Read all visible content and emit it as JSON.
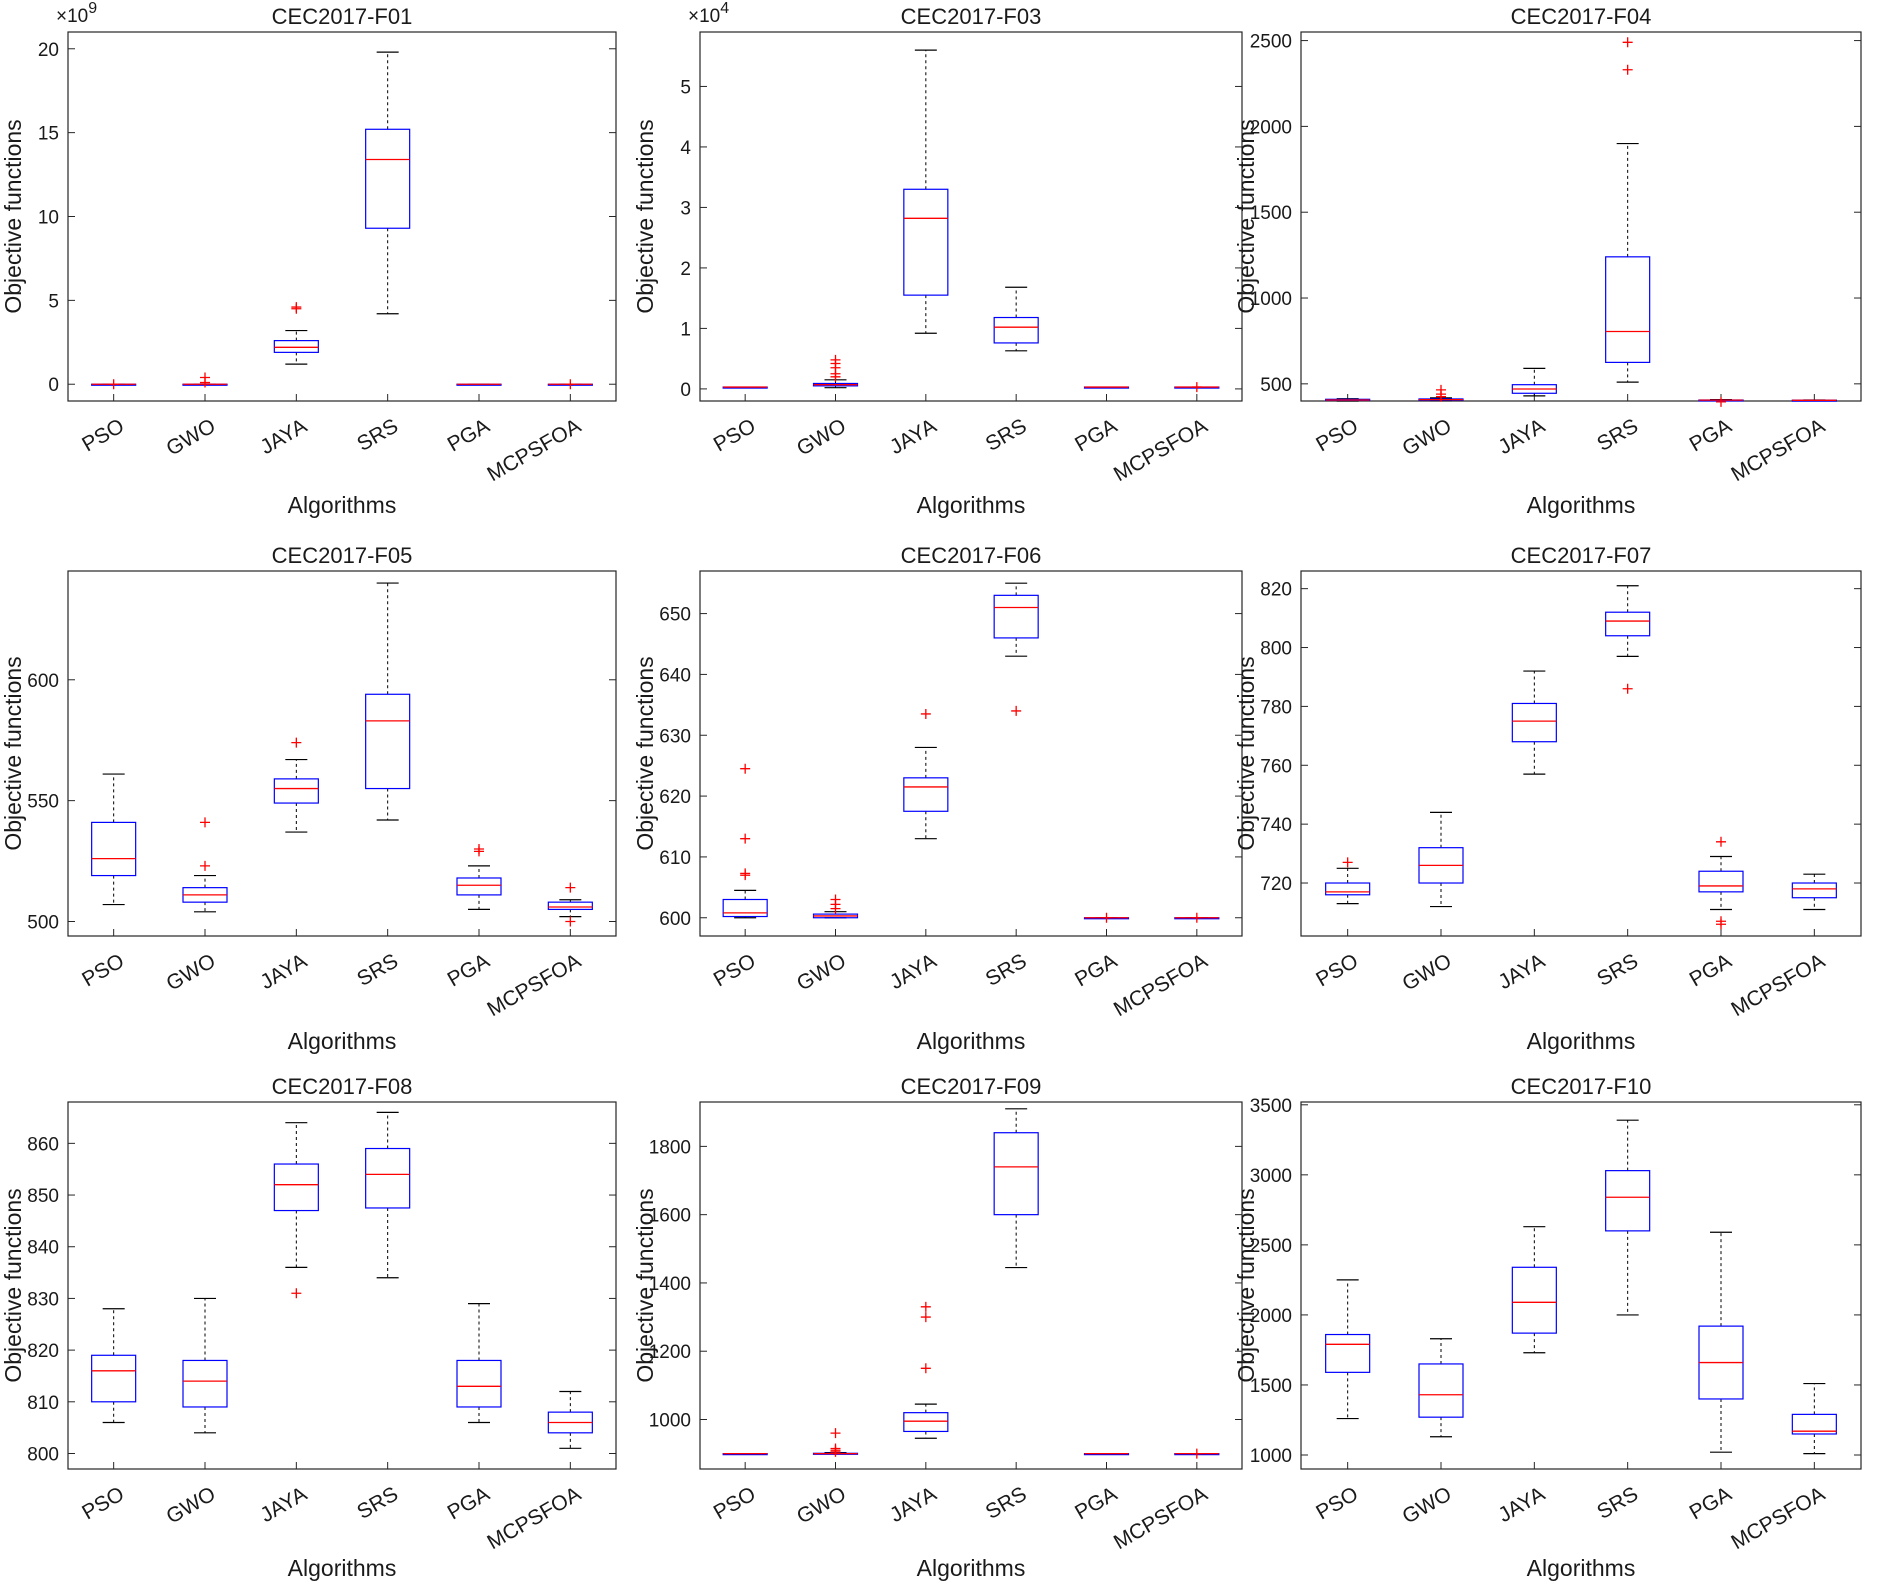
{
  "figure": {
    "colors": {
      "box": "#0000ff",
      "median": "#ff0000",
      "outlier": "#ff0000",
      "whisker": "#000000",
      "axis": "#262626"
    }
  },
  "chart_data": [
    {
      "type": "box",
      "title": "CEC2017-F01",
      "xlabel": "Algorithms",
      "ylabel": "Objective functions",
      "exponent": "9",
      "ylim": [
        -1,
        21
      ],
      "yticks": [
        0,
        5,
        10,
        15,
        20
      ],
      "ytick_labels": [
        "0",
        "5",
        "10",
        "15",
        "20"
      ],
      "categories": [
        "PSO",
        "GWO",
        "JAYA",
        "SRS",
        "PGA",
        "MCPSFOA"
      ],
      "boxes": [
        {
          "min": 0,
          "q1": 0,
          "median": 0,
          "q3": 0,
          "max": 0,
          "outliers": [
            0
          ]
        },
        {
          "min": 0,
          "q1": 0,
          "median": 0,
          "q3": 0,
          "max": 0,
          "outliers": [
            0.1,
            0.4
          ]
        },
        {
          "min": 1.2,
          "q1": 1.9,
          "median": 2.2,
          "q3": 2.6,
          "max": 3.2,
          "outliers": [
            4.5,
            4.6
          ]
        },
        {
          "min": 4.2,
          "q1": 9.3,
          "median": 13.4,
          "q3": 15.2,
          "max": 19.8,
          "outliers": []
        },
        {
          "min": 0,
          "q1": 0,
          "median": 0,
          "q3": 0,
          "max": 0,
          "outliers": []
        },
        {
          "min": 0,
          "q1": 0,
          "median": 0,
          "q3": 0,
          "max": 0,
          "outliers": [
            0
          ]
        }
      ]
    },
    {
      "type": "box",
      "title": "CEC2017-F03",
      "xlabel": "Algorithms",
      "ylabel": "Objective functions",
      "exponent": "4",
      "ylim": [
        -0.2,
        5.9
      ],
      "yticks": [
        0,
        1,
        2,
        3,
        4,
        5
      ],
      "ytick_labels": [
        "0",
        "1",
        "2",
        "3",
        "4",
        "5"
      ],
      "categories": [
        "PSO",
        "GWO",
        "JAYA",
        "SRS",
        "PGA",
        "MCPSFOA"
      ],
      "boxes": [
        {
          "min": 0.03,
          "q1": 0.03,
          "median": 0.03,
          "q3": 0.03,
          "max": 0.03,
          "outliers": []
        },
        {
          "min": 0.02,
          "q1": 0.05,
          "median": 0.07,
          "q3": 0.09,
          "max": 0.15,
          "outliers": [
            0.2,
            0.25,
            0.35,
            0.42,
            0.48
          ]
        },
        {
          "min": 0.92,
          "q1": 1.55,
          "median": 2.82,
          "q3": 3.3,
          "max": 5.6,
          "outliers": []
        },
        {
          "min": 0.63,
          "q1": 0.76,
          "median": 1.02,
          "q3": 1.18,
          "max": 1.68,
          "outliers": []
        },
        {
          "min": 0.03,
          "q1": 0.03,
          "median": 0.03,
          "q3": 0.03,
          "max": 0.03,
          "outliers": []
        },
        {
          "min": 0.03,
          "q1": 0.03,
          "median": 0.03,
          "q3": 0.03,
          "max": 0.03,
          "outliers": [
            0.03
          ]
        }
      ]
    },
    {
      "type": "box",
      "title": "CEC2017-F04",
      "xlabel": "Algorithms",
      "ylabel": "Objective functions",
      "exponent": "",
      "ylim": [
        400,
        2550
      ],
      "yticks": [
        500,
        1000,
        1500,
        2000,
        2500
      ],
      "ytick_labels": [
        "500",
        "1000",
        "1500",
        "2000",
        "2500"
      ],
      "categories": [
        "PSO",
        "GWO",
        "JAYA",
        "SRS",
        "PGA",
        "MCPSFOA"
      ],
      "boxes": [
        {
          "min": 400,
          "q1": 404,
          "median": 406,
          "q3": 410,
          "max": 413,
          "outliers": []
        },
        {
          "min": 402,
          "q1": 405,
          "median": 408,
          "q3": 412,
          "max": 418,
          "outliers": [
            425,
            440,
            465
          ]
        },
        {
          "min": 430,
          "q1": 445,
          "median": 470,
          "q3": 495,
          "max": 590,
          "outliers": []
        },
        {
          "min": 510,
          "q1": 625,
          "median": 805,
          "q3": 1240,
          "max": 1900,
          "outliers": [
            2330,
            2490
          ]
        },
        {
          "min": 402,
          "q1": 404,
          "median": 405,
          "q3": 406,
          "max": 408,
          "outliers": [
            395
          ]
        },
        {
          "min": 402,
          "q1": 403,
          "median": 404,
          "q3": 405,
          "max": 406,
          "outliers": []
        }
      ]
    },
    {
      "type": "box",
      "title": "CEC2017-F05",
      "xlabel": "Algorithms",
      "ylabel": "Objective functions",
      "exponent": "",
      "ylim": [
        494,
        645
      ],
      "yticks": [
        500,
        550,
        600
      ],
      "ytick_labels": [
        "500",
        "550",
        "600"
      ],
      "categories": [
        "PSO",
        "GWO",
        "JAYA",
        "SRS",
        "PGA",
        "MCPSFOA"
      ],
      "boxes": [
        {
          "min": 507,
          "q1": 519,
          "median": 526,
          "q3": 541,
          "max": 561,
          "outliers": []
        },
        {
          "min": 504,
          "q1": 508,
          "median": 511,
          "q3": 514,
          "max": 519,
          "outliers": [
            523,
            541
          ]
        },
        {
          "min": 537,
          "q1": 549,
          "median": 555,
          "q3": 559,
          "max": 567,
          "outliers": [
            574
          ]
        },
        {
          "min": 542,
          "q1": 555,
          "median": 583,
          "q3": 594,
          "max": 640,
          "outliers": []
        },
        {
          "min": 505,
          "q1": 511,
          "median": 515,
          "q3": 518,
          "max": 523,
          "outliers": [
            529,
            530
          ]
        },
        {
          "min": 502,
          "q1": 505,
          "median": 506,
          "q3": 508,
          "max": 509,
          "outliers": [
            500,
            514
          ]
        }
      ]
    },
    {
      "type": "box",
      "title": "CEC2017-F06",
      "xlabel": "Algorithms",
      "ylabel": "Objective functions",
      "exponent": "",
      "ylim": [
        597,
        657
      ],
      "yticks": [
        600,
        610,
        620,
        630,
        640,
        650
      ],
      "ytick_labels": [
        "600",
        "610",
        "620",
        "630",
        "640",
        "650"
      ],
      "categories": [
        "PSO",
        "GWO",
        "JAYA",
        "SRS",
        "PGA",
        "MCPSFOA"
      ],
      "boxes": [
        {
          "min": 600,
          "q1": 600.2,
          "median": 600.8,
          "q3": 603,
          "max": 604.5,
          "outliers": [
            607,
            607.3,
            613,
            624.5
          ]
        },
        {
          "min": 600,
          "q1": 600,
          "median": 600.3,
          "q3": 600.6,
          "max": 601,
          "outliers": [
            601.5,
            602.2,
            603
          ]
        },
        {
          "min": 613,
          "q1": 617.5,
          "median": 621.5,
          "q3": 623,
          "max": 628,
          "outliers": [
            633.5
          ]
        },
        {
          "min": 643,
          "q1": 646,
          "median": 651,
          "q3": 653,
          "max": 655,
          "outliers": [
            634
          ]
        },
        {
          "min": 600,
          "q1": 600,
          "median": 600,
          "q3": 600,
          "max": 600,
          "outliers": [
            600
          ]
        },
        {
          "min": 600,
          "q1": 600,
          "median": 600,
          "q3": 600,
          "max": 600,
          "outliers": [
            600
          ]
        }
      ]
    },
    {
      "type": "box",
      "title": "CEC2017-F07",
      "xlabel": "Algorithms",
      "ylabel": "Objective functions",
      "exponent": "",
      "ylim": [
        702,
        826
      ],
      "yticks": [
        720,
        740,
        760,
        780,
        800,
        820
      ],
      "ytick_labels": [
        "720",
        "740",
        "760",
        "780",
        "800",
        "820"
      ],
      "categories": [
        "PSO",
        "GWO",
        "JAYA",
        "SRS",
        "PGA",
        "MCPSFOA"
      ],
      "boxes": [
        {
          "min": 713,
          "q1": 716,
          "median": 717,
          "q3": 720,
          "max": 725,
          "outliers": [
            727
          ]
        },
        {
          "min": 712,
          "q1": 720,
          "median": 726,
          "q3": 732,
          "max": 744,
          "outliers": []
        },
        {
          "min": 757,
          "q1": 768,
          "median": 775,
          "q3": 781,
          "max": 792,
          "outliers": []
        },
        {
          "min": 797,
          "q1": 804,
          "median": 809,
          "q3": 812,
          "max": 821,
          "outliers": [
            786
          ]
        },
        {
          "min": 711,
          "q1": 717,
          "median": 719,
          "q3": 724,
          "max": 729,
          "outliers": [
            706,
            707,
            734
          ]
        },
        {
          "min": 711,
          "q1": 715,
          "median": 718,
          "q3": 720,
          "max": 723,
          "outliers": []
        }
      ]
    },
    {
      "type": "box",
      "title": "CEC2017-F08",
      "xlabel": "Algorithms",
      "ylabel": "Objective functions",
      "exponent": "",
      "ylim": [
        797,
        868
      ],
      "yticks": [
        800,
        810,
        820,
        830,
        840,
        850,
        860
      ],
      "ytick_labels": [
        "800",
        "810",
        "820",
        "830",
        "840",
        "850",
        "860"
      ],
      "categories": [
        "PSO",
        "GWO",
        "JAYA",
        "SRS",
        "PGA",
        "MCPSFOA"
      ],
      "boxes": [
        {
          "min": 806,
          "q1": 810,
          "median": 816,
          "q3": 819,
          "max": 828,
          "outliers": []
        },
        {
          "min": 804,
          "q1": 809,
          "median": 814,
          "q3": 818,
          "max": 830,
          "outliers": []
        },
        {
          "min": 836,
          "q1": 847,
          "median": 852,
          "q3": 856,
          "max": 864,
          "outliers": [
            831
          ]
        },
        {
          "min": 834,
          "q1": 847.5,
          "median": 854,
          "q3": 859,
          "max": 866,
          "outliers": []
        },
        {
          "min": 806,
          "q1": 809,
          "median": 813,
          "q3": 818,
          "max": 829,
          "outliers": []
        },
        {
          "min": 801,
          "q1": 804,
          "median": 806,
          "q3": 808,
          "max": 812,
          "outliers": []
        }
      ]
    },
    {
      "type": "box",
      "title": "CEC2017-F09",
      "xlabel": "Algorithms",
      "ylabel": "Objective functions",
      "exponent": "",
      "ylim": [
        855,
        1930
      ],
      "yticks": [
        1000,
        1200,
        1400,
        1600,
        1800
      ],
      "ytick_labels": [
        "1000",
        "1200",
        "1400",
        "1600",
        "1800"
      ],
      "categories": [
        "PSO",
        "GWO",
        "JAYA",
        "SRS",
        "PGA",
        "MCPSFOA"
      ],
      "boxes": [
        {
          "min": 900,
          "q1": 900,
          "median": 900,
          "q3": 900,
          "max": 900,
          "outliers": []
        },
        {
          "min": 900,
          "q1": 900,
          "median": 900,
          "q3": 901,
          "max": 903,
          "outliers": [
            905,
            910,
            915,
            960
          ]
        },
        {
          "min": 945,
          "q1": 965,
          "median": 995,
          "q3": 1020,
          "max": 1045,
          "outliers": [
            1150,
            1300,
            1330
          ]
        },
        {
          "min": 1445,
          "q1": 1600,
          "median": 1740,
          "q3": 1840,
          "max": 1910,
          "outliers": []
        },
        {
          "min": 900,
          "q1": 900,
          "median": 900,
          "q3": 900,
          "max": 900,
          "outliers": []
        },
        {
          "min": 900,
          "q1": 900,
          "median": 900,
          "q3": 900,
          "max": 900,
          "outliers": [
            900
          ]
        }
      ]
    },
    {
      "type": "box",
      "title": "CEC2017-F10",
      "xlabel": "Algorithms",
      "ylabel": "Objective functions",
      "exponent": "",
      "ylim": [
        900,
        3520
      ],
      "yticks": [
        1000,
        1500,
        2000,
        2500,
        3000,
        3500
      ],
      "ytick_labels": [
        "1000",
        "1500",
        "2000",
        "2500",
        "3000",
        "3500"
      ],
      "categories": [
        "PSO",
        "GWO",
        "JAYA",
        "SRS",
        "PGA",
        "MCPSFOA"
      ],
      "boxes": [
        {
          "min": 1260,
          "q1": 1590,
          "median": 1790,
          "q3": 1860,
          "max": 2250,
          "outliers": []
        },
        {
          "min": 1130,
          "q1": 1270,
          "median": 1430,
          "q3": 1650,
          "max": 1830,
          "outliers": []
        },
        {
          "min": 1730,
          "q1": 1870,
          "median": 2090,
          "q3": 2340,
          "max": 2630,
          "outliers": []
        },
        {
          "min": 2000,
          "q1": 2600,
          "median": 2840,
          "q3": 3030,
          "max": 3390,
          "outliers": []
        },
        {
          "min": 1020,
          "q1": 1400,
          "median": 1660,
          "q3": 1920,
          "max": 2590,
          "outliers": []
        },
        {
          "min": 1010,
          "q1": 1150,
          "median": 1170,
          "q3": 1290,
          "max": 1510,
          "outliers": []
        }
      ]
    }
  ]
}
